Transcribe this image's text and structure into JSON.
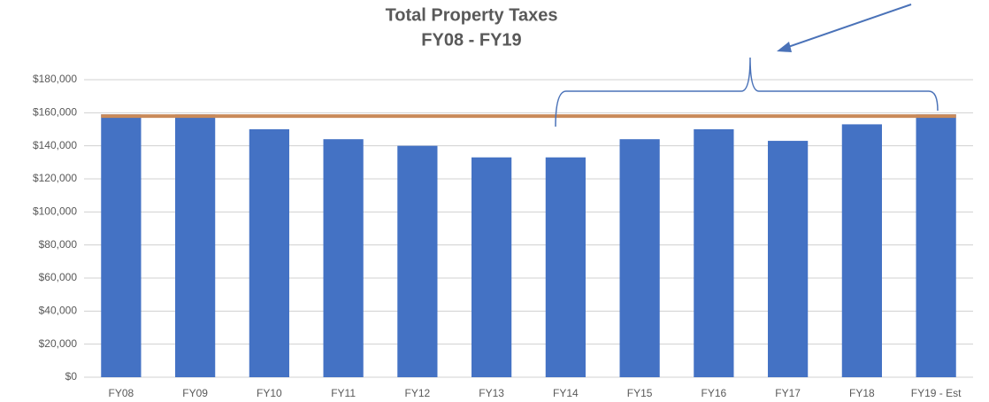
{
  "chart_data": {
    "type": "bar",
    "title": [
      "Total Property Taxes",
      "FY08 - FY19"
    ],
    "categories": [
      "FY08",
      "FY09",
      "FY10",
      "FY11",
      "FY12",
      "FY13",
      "FY14",
      "FY15",
      "FY16",
      "FY17",
      "FY18",
      "FY19 - Est"
    ],
    "values": [
      159000,
      159000,
      150000,
      144000,
      140000,
      133000,
      133000,
      144000,
      150000,
      143000,
      153000,
      159000
    ],
    "color": "#4472c4",
    "reference_line": {
      "value": 158000,
      "color": "#c98a5a"
    },
    "ylim": [
      0,
      180000
    ],
    "yticks": [
      {
        "value": 0,
        "label": "$0"
      },
      {
        "value": 20000,
        "label": "$20,000"
      },
      {
        "value": 40000,
        "label": "$40,000"
      },
      {
        "value": 60000,
        "label": "$60,000"
      },
      {
        "value": 80000,
        "label": "$80,000"
      },
      {
        "value": 100000,
        "label": "$100,000"
      },
      {
        "value": 120000,
        "label": "$120,000"
      },
      {
        "value": 140000,
        "label": "$140,000"
      },
      {
        "value": 160000,
        "label": "$160,000"
      },
      {
        "value": 180000,
        "label": "$180,000"
      }
    ],
    "grid": true
  }
}
